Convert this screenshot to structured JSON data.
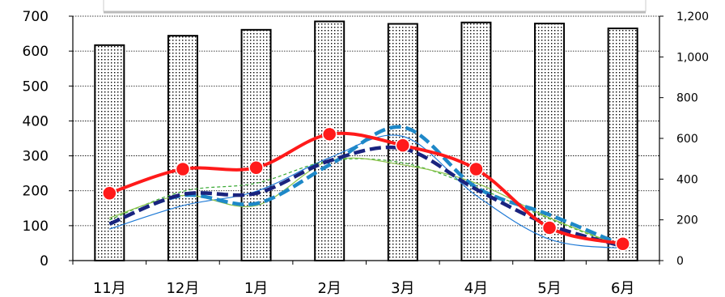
{
  "chart_data": {
    "type": "bar",
    "title": "",
    "xlabel": "",
    "ylabel": "",
    "y2label": "",
    "categories": [
      "11月",
      "12月",
      "1月",
      "2月",
      "3月",
      "4月",
      "5月",
      "6月"
    ],
    "ylim": [
      0,
      700
    ],
    "y_ticks": [
      "0",
      "100",
      "200",
      "300",
      "400",
      "500",
      "600",
      "700"
    ],
    "y2lim": [
      0,
      1200
    ],
    "y2_ticks": [
      "0",
      "200",
      "400",
      "600",
      "800",
      "1,000",
      "1,200"
    ],
    "grid": true,
    "legend": "top (clipped, no text visible)",
    "bars": {
      "axis": "left",
      "values": [
        617,
        644,
        661,
        685,
        678,
        682,
        679,
        665
      ],
      "fill_pattern": "dotted",
      "stroke_color": "#000000"
    },
    "series": [
      {
        "style": "thin-solid",
        "color": "#1f7ad6",
        "axis": "right",
        "values": [
          155,
          270,
          340,
          505,
          610,
          320,
          105,
          60
        ]
      },
      {
        "style": "thin-dashed",
        "color": "#3aaa35",
        "axis": "right",
        "values": [
          200,
          340,
          380,
          490,
          480,
          360,
          205,
          65
        ]
      },
      {
        "style": "thin-solid",
        "color": "#8bc34a",
        "axis": "right",
        "values": [
          210,
          320,
          270,
          490,
          470,
          380,
          210,
          70
        ]
      },
      {
        "style": "thick-dashed",
        "color": "#1e88c8",
        "axis": "right",
        "values": [
          180,
          320,
          280,
          470,
          655,
          360,
          225,
          75
        ]
      },
      {
        "style": "thick-dashed",
        "color": "#1a237e",
        "axis": "right",
        "values": [
          180,
          325,
          330,
          490,
          550,
          350,
          175,
          70
        ]
      },
      {
        "style": "thick-solid-markers",
        "color": "#ff1a1a",
        "axis": "left",
        "values": [
          193,
          262,
          266,
          362,
          330,
          262,
          94,
          48
        ]
      }
    ]
  }
}
